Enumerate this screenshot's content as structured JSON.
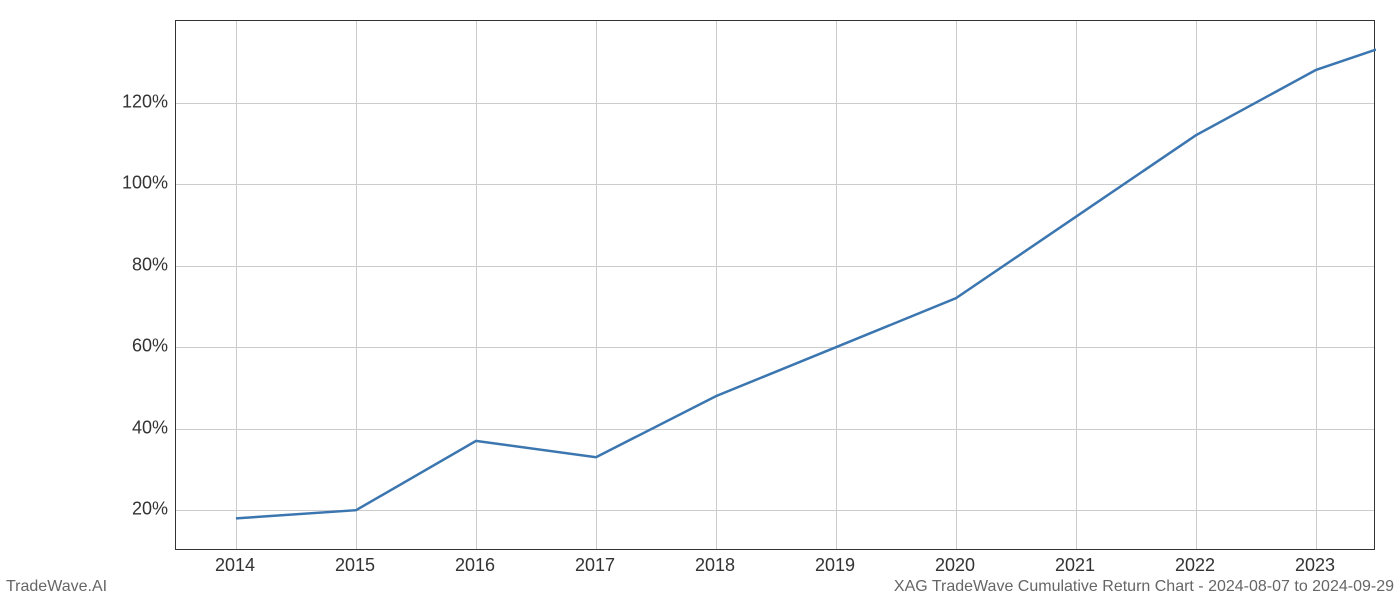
{
  "chart": {
    "type": "line",
    "x_values": [
      2014,
      2015,
      2016,
      2017,
      2018,
      2019,
      2020,
      2021,
      2022,
      2023,
      2023.5
    ],
    "y_values": [
      18,
      20,
      37,
      33,
      48,
      60,
      72,
      92,
      112,
      128,
      133
    ],
    "line_color": "#3b76b0",
    "line_width": 2.5,
    "x_ticks": [
      2014,
      2015,
      2016,
      2017,
      2018,
      2019,
      2020,
      2021,
      2022,
      2023
    ],
    "x_tick_labels": [
      "2014",
      "2015",
      "2016",
      "2017",
      "2018",
      "2019",
      "2020",
      "2021",
      "2022",
      "2023"
    ],
    "y_ticks": [
      20,
      40,
      60,
      80,
      100,
      120
    ],
    "y_tick_labels": [
      "20%",
      "40%",
      "60%",
      "80%",
      "100%",
      "120%"
    ],
    "xlim": [
      2013.5,
      2023.5
    ],
    "ylim": [
      10,
      140
    ],
    "grid_color": "#cccccc",
    "background_color": "#ffffff",
    "border_color": "#333333",
    "tick_fontsize": 18,
    "tick_color": "#333333"
  },
  "footer": {
    "left": "TradeWave.AI",
    "right": "XAG TradeWave Cumulative Return Chart - 2024-08-07 to 2024-09-29",
    "fontsize": 16,
    "color": "#666666"
  }
}
